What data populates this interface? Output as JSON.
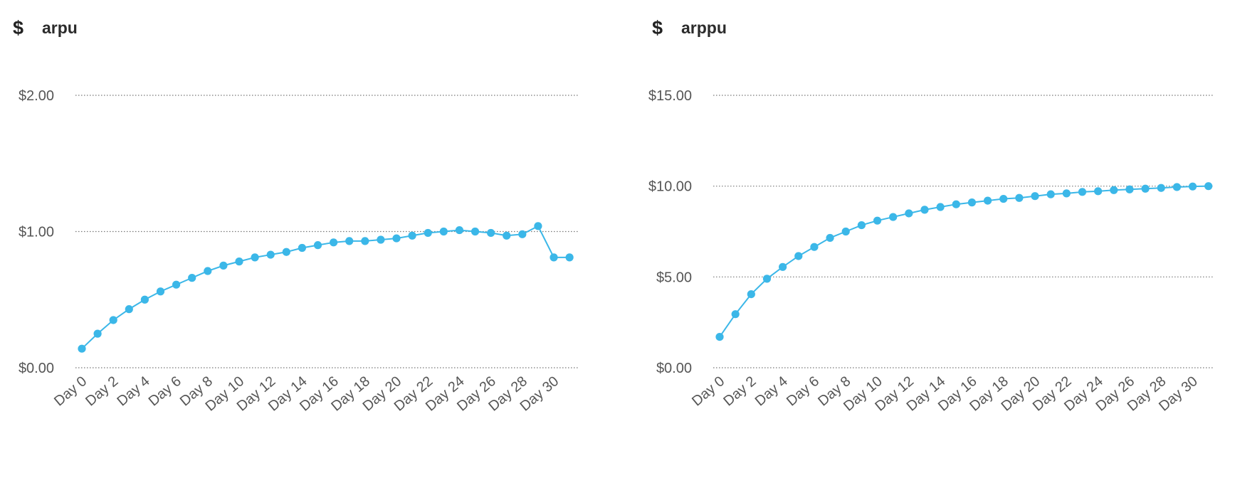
{
  "colors": {
    "series": "#3bb7e8",
    "grid": "#777777",
    "tick_text": "#555555",
    "title_text": "#2b2b2b"
  },
  "chart_data": [
    {
      "type": "line",
      "icon": "dollar-icon",
      "icon_glyph": "$",
      "title": "arpu",
      "xlabel": "",
      "ylabel": "",
      "ylim": [
        0,
        2
      ],
      "y_ticks": [
        {
          "value": 0,
          "label": "$0.00"
        },
        {
          "value": 1,
          "label": "$1.00"
        },
        {
          "value": 2,
          "label": "$2.00"
        }
      ],
      "grid": true,
      "legend": "none",
      "x": [
        "Day 0",
        "Day 1",
        "Day 2",
        "Day 3",
        "Day 4",
        "Day 5",
        "Day 6",
        "Day 7",
        "Day 8",
        "Day 9",
        "Day 10",
        "Day 11",
        "Day 12",
        "Day 13",
        "Day 14",
        "Day 15",
        "Day 16",
        "Day 17",
        "Day 18",
        "Day 19",
        "Day 20",
        "Day 21",
        "Day 22",
        "Day 23",
        "Day 24",
        "Day 25",
        "Day 26",
        "Day 27",
        "Day 28",
        "Day 29",
        "Day 30",
        "Day 31"
      ],
      "x_tick_labels": [
        "Day 0",
        "Day 2",
        "Day 4",
        "Day 6",
        "Day 8",
        "Day 10",
        "Day 12",
        "Day 14",
        "Day 16",
        "Day 18",
        "Day 20",
        "Day 22",
        "Day 24",
        "Day 26",
        "Day 28",
        "Day 30"
      ],
      "series": [
        {
          "values": [
            0.14,
            0.25,
            0.35,
            0.43,
            0.5,
            0.56,
            0.61,
            0.66,
            0.71,
            0.75,
            0.78,
            0.81,
            0.83,
            0.85,
            0.88,
            0.9,
            0.92,
            0.93,
            0.93,
            0.94,
            0.95,
            0.97,
            0.99,
            1.0,
            1.01,
            1.0,
            0.99,
            0.97,
            0.98,
            1.04,
            0.81,
            0.81
          ]
        }
      ]
    },
    {
      "type": "line",
      "icon": "dollar-icon",
      "icon_glyph": "$",
      "title": "arppu",
      "xlabel": "",
      "ylabel": "",
      "ylim": [
        0,
        15
      ],
      "y_ticks": [
        {
          "value": 0,
          "label": "$0.00"
        },
        {
          "value": 5,
          "label": "$5.00"
        },
        {
          "value": 10,
          "label": "$10.00"
        },
        {
          "value": 15,
          "label": "$15.00"
        }
      ],
      "grid": true,
      "legend": "none",
      "x": [
        "Day 0",
        "Day 1",
        "Day 2",
        "Day 3",
        "Day 4",
        "Day 5",
        "Day 6",
        "Day 7",
        "Day 8",
        "Day 9",
        "Day 10",
        "Day 11",
        "Day 12",
        "Day 13",
        "Day 14",
        "Day 15",
        "Day 16",
        "Day 17",
        "Day 18",
        "Day 19",
        "Day 20",
        "Day 21",
        "Day 22",
        "Day 23",
        "Day 24",
        "Day 25",
        "Day 26",
        "Day 27",
        "Day 28",
        "Day 29",
        "Day 30",
        "Day 31"
      ],
      "x_tick_labels": [
        "Day 0",
        "Day 2",
        "Day 4",
        "Day 6",
        "Day 8",
        "Day 10",
        "Day 12",
        "Day 14",
        "Day 16",
        "Day 18",
        "Day 20",
        "Day 22",
        "Day 24",
        "Day 26",
        "Day 28",
        "Day 30"
      ],
      "series": [
        {
          "values": [
            1.7,
            2.95,
            4.05,
            4.9,
            5.55,
            6.15,
            6.65,
            7.15,
            7.5,
            7.85,
            8.1,
            8.3,
            8.5,
            8.7,
            8.85,
            9.0,
            9.1,
            9.2,
            9.3,
            9.35,
            9.45,
            9.55,
            9.6,
            9.68,
            9.72,
            9.78,
            9.82,
            9.86,
            9.9,
            9.95,
            9.98,
            10.0
          ]
        }
      ]
    }
  ]
}
